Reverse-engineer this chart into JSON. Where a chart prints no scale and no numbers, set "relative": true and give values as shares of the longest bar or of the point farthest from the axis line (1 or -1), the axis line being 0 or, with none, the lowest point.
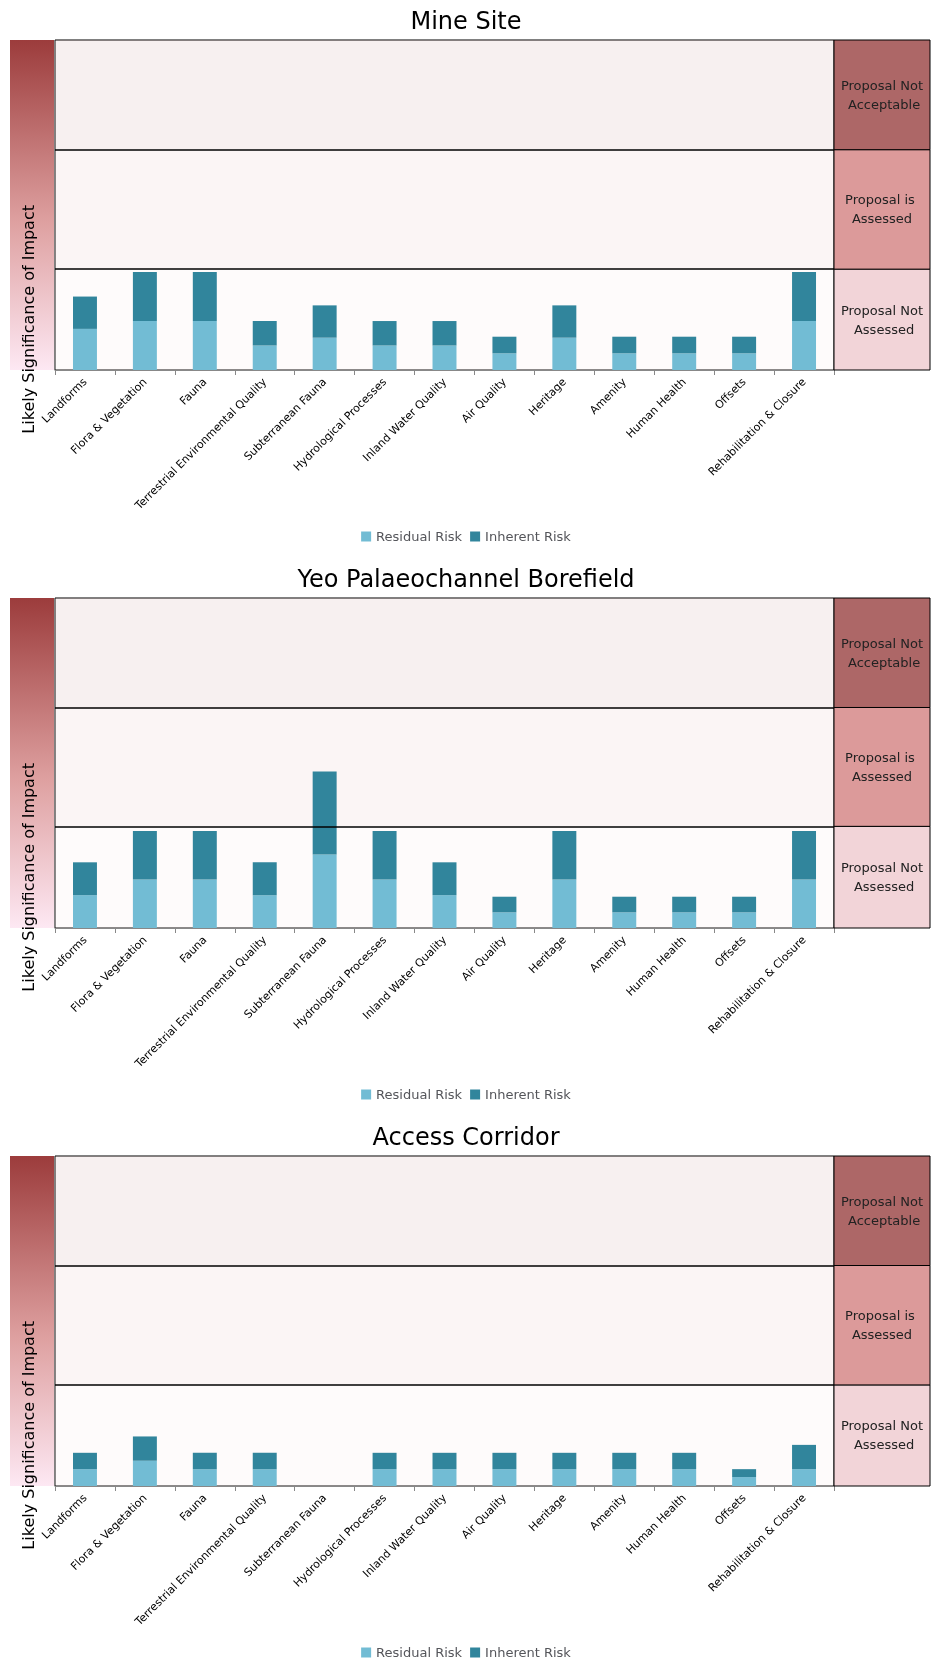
{
  "chart_data": [
    {
      "type": "bar",
      "title": "Mine Site",
      "ylabel": "Likely Significance of Impact",
      "relative": true,
      "stacked": true,
      "legend": "bottom",
      "categories": [
        "Landforms",
        "Flora & Vegetation",
        "Fauna",
        "Terrestrial Environmental Quality",
        "Subterranean Fauna",
        "Hydrological Processes",
        "Inland Water Quality",
        "Air Quality",
        "Heritage",
        "Amenity",
        "Human Health",
        "Offsets",
        "Rehabilitation & Closure"
      ],
      "series": [
        {
          "name": "Residual Risk",
          "color": "#72bcd4",
          "values": [
            0.42,
            0.5,
            0.5,
            0.25,
            0.33,
            0.25,
            0.25,
            0.17,
            0.33,
            0.17,
            0.17,
            0.17,
            0.5
          ]
        },
        {
          "name": "Inherent Risk",
          "color": "#31859c",
          "values": [
            0.33,
            0.5,
            0.5,
            0.25,
            0.33,
            0.25,
            0.25,
            0.17,
            0.33,
            0.17,
            0.17,
            0.17,
            0.5
          ]
        }
      ],
      "bands": [
        {
          "axis": "y",
          "from": 0,
          "to": 1.03,
          "label": "Proposal Not Assessed",
          "color": "#f2d4d8"
        },
        {
          "axis": "y",
          "from": 1.03,
          "to": 2.25,
          "label": "Proposal is Assessed",
          "color": "#dc9a9a"
        },
        {
          "axis": "y",
          "from": 2.25,
          "to": 3.37,
          "label": "Proposal Not Acceptable",
          "color": "#ad6767"
        }
      ],
      "ref_lines": [
        {
          "axis": "y",
          "value": 1.03,
          "color": "#000000"
        },
        {
          "axis": "y",
          "value": 2.25,
          "color": "#000000"
        }
      ]
    },
    {
      "type": "bar",
      "title": "Yeo Palaeochannel Borefield",
      "ylabel": "Likely Significance of Impact",
      "relative": true,
      "stacked": true,
      "legend": "bottom",
      "categories": [
        "Landforms",
        "Flora & Vegetation",
        "Fauna",
        "Terrestrial Environmental Quality",
        "Subterranean Fauna",
        "Hydrological Processes",
        "Inland Water Quality",
        "Air Quality",
        "Heritage",
        "Amenity",
        "Human Health",
        "Offsets",
        "Rehabilitation & Closure"
      ],
      "series": [
        {
          "name": "Residual Risk",
          "color": "#72bcd4",
          "values": [
            0.21,
            0.31,
            0.31,
            0.21,
            0.47,
            0.31,
            0.21,
            0.1,
            0.31,
            0.1,
            0.1,
            0.1,
            0.31
          ]
        },
        {
          "name": "Inherent Risk",
          "color": "#31859c",
          "values": [
            0.21,
            0.31,
            0.31,
            0.21,
            0.53,
            0.31,
            0.21,
            0.1,
            0.31,
            0.1,
            0.1,
            0.1,
            0.31
          ]
        }
      ],
      "bands": [
        {
          "axis": "y",
          "from": 0,
          "to": 0.65,
          "label": "Proposal Not Assessed",
          "color": "#f2d4d8"
        },
        {
          "axis": "y",
          "from": 0.65,
          "to": 1.41,
          "label": "Proposal is Assessed",
          "color": "#dc9a9a"
        },
        {
          "axis": "y",
          "from": 1.41,
          "to": 2.11,
          "label": "Proposal Not Acceptable",
          "color": "#ad6767"
        }
      ],
      "ref_lines": [
        {
          "axis": "y",
          "value": 0.65,
          "color": "#000000"
        },
        {
          "axis": "y",
          "value": 1.41,
          "color": "#000000"
        }
      ]
    },
    {
      "type": "bar",
      "title": "Access Corridor",
      "ylabel": "Likely Significance of Impact",
      "relative": true,
      "stacked": true,
      "legend": "bottom",
      "categories": [
        "Landforms",
        "Flora & Vegetation",
        "Fauna",
        "Terrestrial Environmental Quality",
        "Subterranean Fauna",
        "Hydrological Processes",
        "Inland Water Quality",
        "Air Quality",
        "Heritage",
        "Amenity",
        "Human Health",
        "Offsets",
        "Rehabilitation & Closure"
      ],
      "series": [
        {
          "name": "Residual Risk",
          "color": "#72bcd4",
          "values": [
            0.34,
            0.51,
            0.34,
            0.34,
            null,
            0.34,
            0.34,
            0.34,
            0.34,
            0.34,
            0.34,
            0.18,
            0.34
          ]
        },
        {
          "name": "Inherent Risk",
          "color": "#31859c",
          "values": [
            0.33,
            0.49,
            0.33,
            0.33,
            null,
            0.33,
            0.33,
            0.33,
            0.33,
            0.33,
            0.33,
            0.16,
            0.49
          ]
        }
      ],
      "bands": [
        {
          "axis": "y",
          "from": 0,
          "to": 2.04,
          "label": "Proposal Not Assessed",
          "color": "#f2d4d8"
        },
        {
          "axis": "y",
          "from": 2.04,
          "to": 4.45,
          "label": "Proposal is Assessed",
          "color": "#dc9a9a"
        },
        {
          "axis": "y",
          "from": 4.45,
          "to": 6.66,
          "label": "Proposal Not Acceptable",
          "color": "#ad6767"
        }
      ],
      "ref_lines": [
        {
          "axis": "y",
          "value": 2.04,
          "color": "#000000"
        },
        {
          "axis": "y",
          "value": 4.45,
          "color": "#000000"
        }
      ]
    }
  ]
}
